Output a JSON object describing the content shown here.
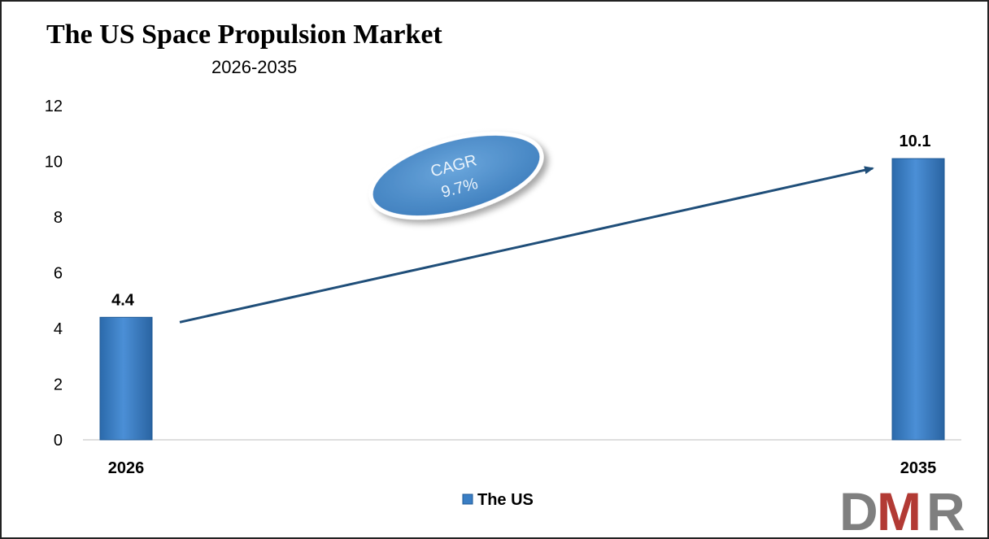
{
  "chart_data": {
    "type": "bar",
    "title": "The US Space Propulsion Market",
    "subtitle": "2026-2035",
    "categories": [
      "2026",
      "2035"
    ],
    "series": [
      {
        "name": "The US",
        "values": [
          4.4,
          10.1
        ],
        "color": "#3a7ec4"
      }
    ],
    "data_labels": [
      "4.4",
      "10.1"
    ],
    "y_ticks": [
      "0",
      "2",
      "4",
      "6",
      "8",
      "10",
      "12"
    ],
    "ylim": [
      0,
      12
    ],
    "grid": false,
    "legend_position": "bottom",
    "annotation": {
      "label": "CAGR",
      "value": "9.7%",
      "color": "#5b9bd5"
    },
    "arrow_color": "#1f4e79"
  },
  "logo": {
    "letters": [
      "D",
      "M",
      "R"
    ],
    "colors": [
      "#7f7f7f",
      "#b23a34",
      "#7f7f7f"
    ]
  }
}
